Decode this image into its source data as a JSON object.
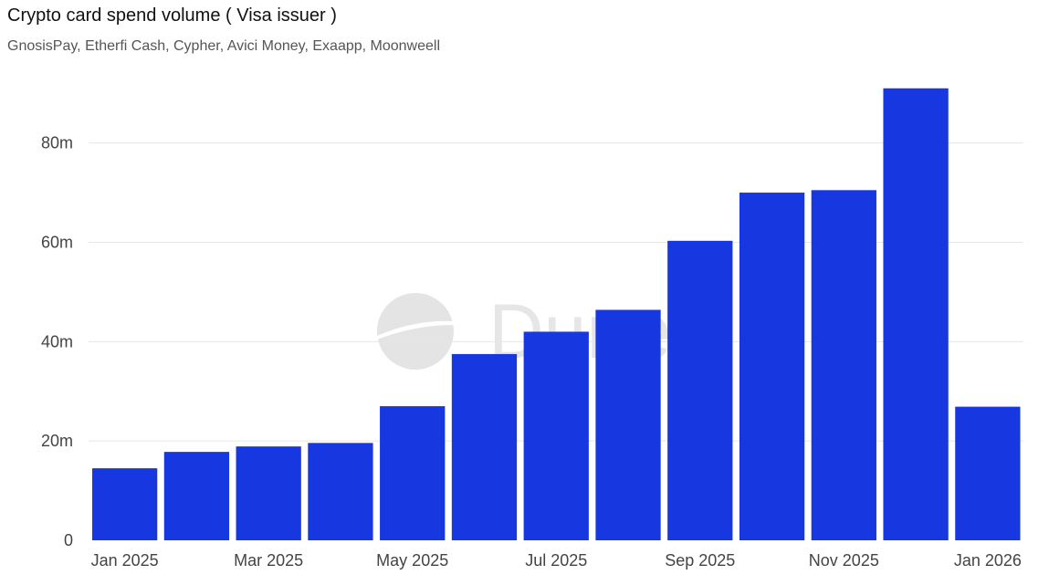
{
  "header": {
    "title": "Crypto card spend volume ( Visa issuer )",
    "subtitle": "GnosisPay, Etherfi Cash, Cypher, Avici Money, Exaapp, Moonweell"
  },
  "watermark": {
    "text": "Dune"
  },
  "colors": {
    "bar": "#1737e0",
    "grid": "#e6e6e6",
    "watermark": "#e4e4e4"
  },
  "chart_data": {
    "type": "bar",
    "title": "Crypto card spend volume ( Visa issuer )",
    "subtitle": "GnosisPay, Etherfi Cash, Cypher, Avici Money, Exaapp, Moonweell",
    "categories": [
      "2025-01",
      "2025-02",
      "2025-03",
      "2025-04",
      "2025-05",
      "2025-06",
      "2025-07",
      "2025-08",
      "2025-09",
      "2025-10",
      "2025-11",
      "2025-12",
      "2026-01"
    ],
    "values": [
      14.5,
      17.8,
      18.9,
      19.6,
      27.0,
      37.5,
      42.0,
      46.4,
      60.3,
      70.0,
      70.5,
      91.0,
      26.9
    ],
    "unit": "m",
    "ylim": [
      0,
      95
    ],
    "yticks": [
      0,
      20,
      40,
      60,
      80
    ],
    "ytick_labels": [
      "0",
      "20m",
      "40m",
      "60m",
      "80m"
    ],
    "xtick_labels": [
      {
        "index": 0,
        "label": "Jan 2025"
      },
      {
        "index": 2,
        "label": "Mar 2025"
      },
      {
        "index": 4,
        "label": "May 2025"
      },
      {
        "index": 6,
        "label": "Jul 2025"
      },
      {
        "index": 8,
        "label": "Sep 2025"
      },
      {
        "index": 10,
        "label": "Nov 2025"
      },
      {
        "index": 12,
        "label": "Jan 2026"
      }
    ],
    "xlabel": "",
    "ylabel": "",
    "grid": true,
    "legend": "none"
  }
}
